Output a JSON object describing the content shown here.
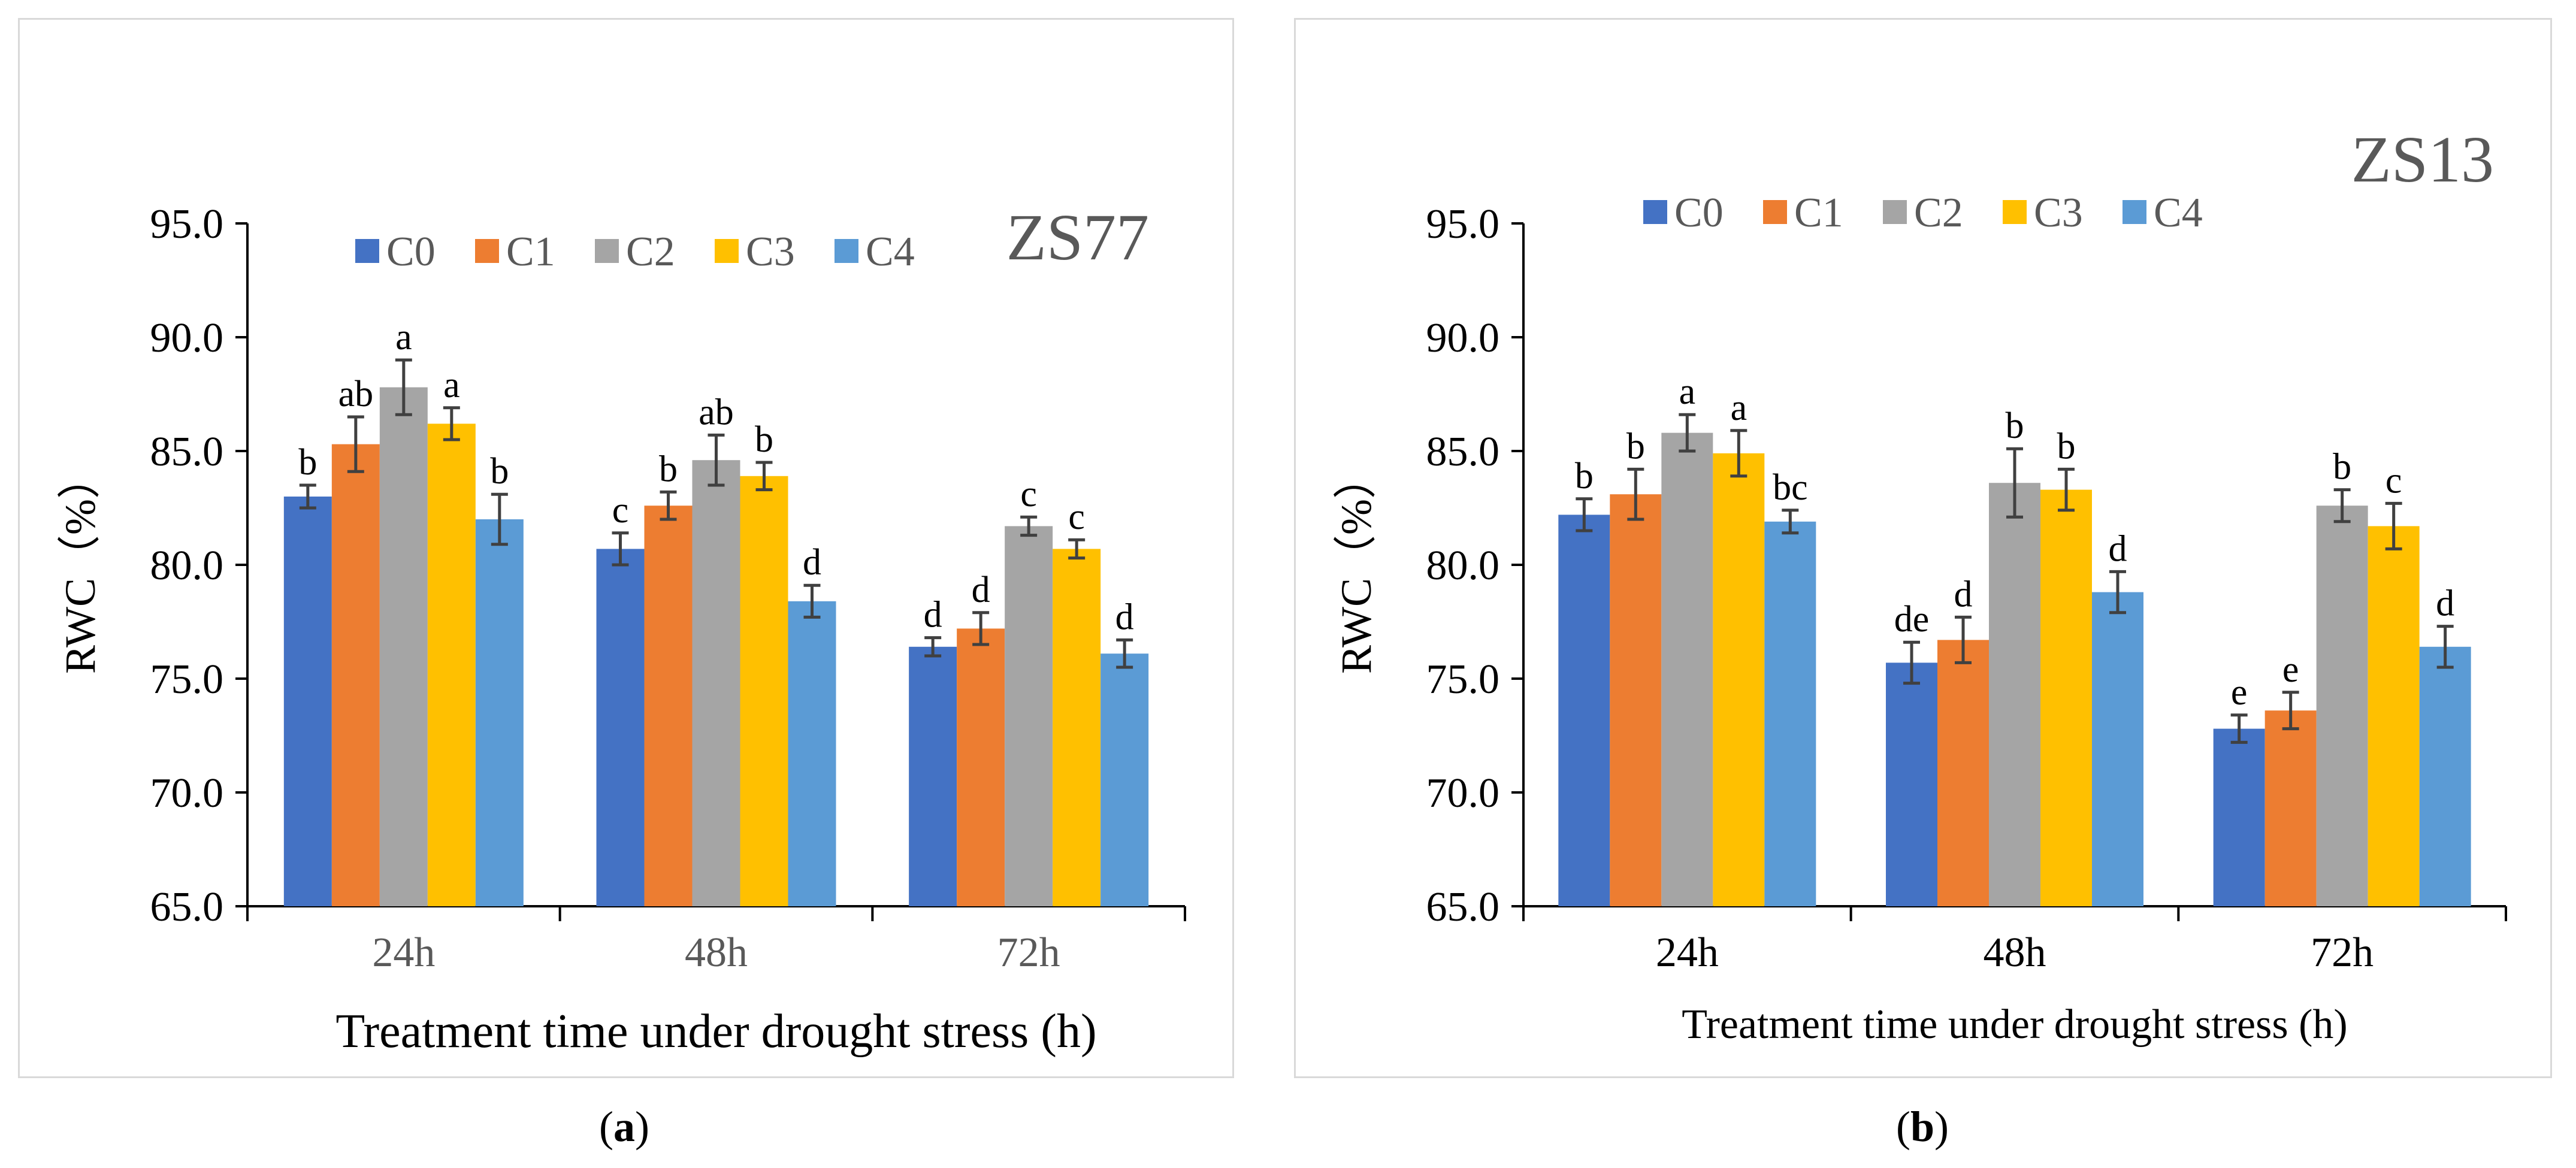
{
  "colors": {
    "C0": "#4472c4",
    "C1": "#ed7d31",
    "C2": "#a5a5a5",
    "C3": "#ffc000",
    "C4": "#5b9bd5",
    "axis": "#000000",
    "error_bar": "#404040",
    "title": "#595959"
  },
  "captions": {
    "a_open": "(",
    "a_letter": "a",
    "a_close": ")",
    "b_open": "(",
    "b_letter": "b",
    "b_close": ")"
  },
  "chart_data": [
    {
      "type": "bar",
      "panel": "a",
      "title": "ZS77",
      "xlabel": "Treatment time under drought stress (h)",
      "ylabel": "RWC（%）",
      "categories": [
        "24h",
        "48h",
        "72h"
      ],
      "ylim": [
        65.0,
        95.0
      ],
      "yticks": [
        "65.0",
        "70.0",
        "75.0",
        "80.0",
        "85.0",
        "90.0",
        "95.0"
      ],
      "legend_position": "top",
      "grid": false,
      "series": [
        {
          "name": "C0",
          "values": [
            83.0,
            80.7,
            76.4
          ],
          "errors": [
            0.5,
            0.7,
            0.4
          ],
          "letters": [
            "b",
            "c",
            "d"
          ]
        },
        {
          "name": "C1",
          "values": [
            85.3,
            82.6,
            77.2
          ],
          "errors": [
            1.2,
            0.6,
            0.7
          ],
          "letters": [
            "ab",
            "b",
            "d"
          ]
        },
        {
          "name": "C2",
          "values": [
            87.8,
            84.6,
            81.7
          ],
          "errors": [
            1.2,
            1.1,
            0.4
          ],
          "letters": [
            "a",
            "ab",
            "c"
          ]
        },
        {
          "name": "C3",
          "values": [
            86.2,
            83.9,
            80.7
          ],
          "errors": [
            0.7,
            0.6,
            0.4
          ],
          "letters": [
            "a",
            "b",
            "c"
          ]
        },
        {
          "name": "C4",
          "values": [
            82.0,
            78.4,
            76.1
          ],
          "errors": [
            1.1,
            0.7,
            0.6
          ],
          "letters": [
            "b",
            "d",
            "d"
          ]
        }
      ]
    },
    {
      "type": "bar",
      "panel": "b",
      "title": "ZS13",
      "xlabel": "Treatment time under drought stress (h)",
      "ylabel": "RWC（%）",
      "categories": [
        "24h",
        "48h",
        "72h"
      ],
      "ylim": [
        65.0,
        95.0
      ],
      "yticks": [
        "65.0",
        "70.0",
        "75.0",
        "80.0",
        "85.0",
        "90.0",
        "95.0"
      ],
      "legend_position": "top",
      "grid": false,
      "series": [
        {
          "name": "C0",
          "values": [
            82.2,
            75.7,
            72.8
          ],
          "errors": [
            0.7,
            0.9,
            0.6
          ],
          "letters": [
            "b",
            "de",
            "e"
          ]
        },
        {
          "name": "C1",
          "values": [
            83.1,
            76.7,
            73.6
          ],
          "errors": [
            1.1,
            1.0,
            0.8
          ],
          "letters": [
            "b",
            "d",
            "e"
          ]
        },
        {
          "name": "C2",
          "values": [
            85.8,
            83.6,
            82.6
          ],
          "errors": [
            0.8,
            1.5,
            0.7
          ],
          "letters": [
            "a",
            "b",
            "b"
          ]
        },
        {
          "name": "C3",
          "values": [
            84.9,
            83.3,
            81.7
          ],
          "errors": [
            1.0,
            0.9,
            1.0
          ],
          "letters": [
            "a",
            "b",
            "c"
          ]
        },
        {
          "name": "C4",
          "values": [
            81.9,
            78.8,
            76.4
          ],
          "errors": [
            0.5,
            0.9,
            0.9
          ],
          "letters": [
            "bc",
            "d",
            "d"
          ]
        }
      ]
    }
  ]
}
